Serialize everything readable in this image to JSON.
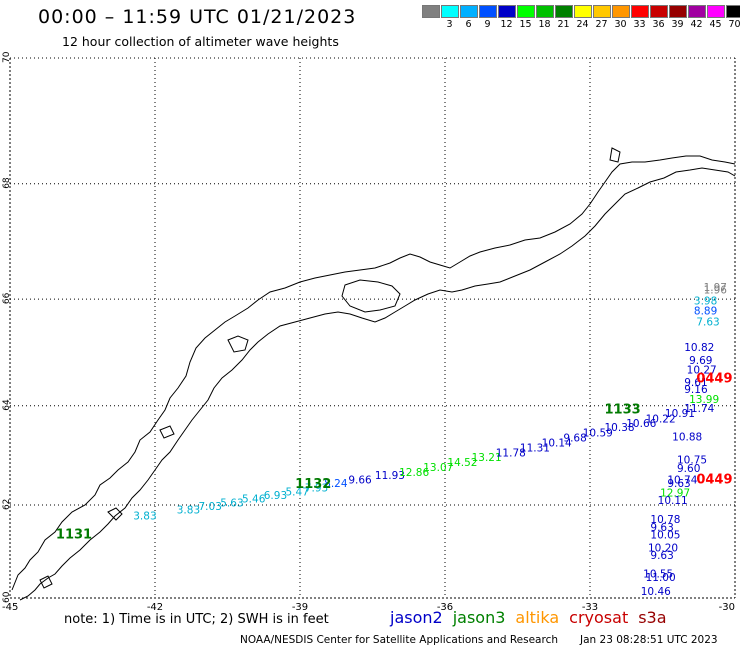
{
  "header": {
    "title": "00:00 – 11:59 UTC 01/21/2023",
    "subtitle": "12 hour collection of altimeter wave heights"
  },
  "legend": {
    "unit": "(ft)",
    "items": [
      {
        "color": "#808080",
        "label": ""
      },
      {
        "color": "#00ffff",
        "label": "3"
      },
      {
        "color": "#00b0ff",
        "label": "6"
      },
      {
        "color": "#0050ff",
        "label": "9"
      },
      {
        "color": "#0000c8",
        "label": "12"
      },
      {
        "color": "#00ff00",
        "label": "15"
      },
      {
        "color": "#00c000",
        "label": "18"
      },
      {
        "color": "#008000",
        "label": "21"
      },
      {
        "color": "#ffff00",
        "label": "24"
      },
      {
        "color": "#ffc800",
        "label": "27"
      },
      {
        "color": "#ff9600",
        "label": "30"
      },
      {
        "color": "#ff0000",
        "label": "33"
      },
      {
        "color": "#c80000",
        "label": "36"
      },
      {
        "color": "#960000",
        "label": "39"
      },
      {
        "color": "#a000a0",
        "label": "42"
      },
      {
        "color": "#ff00ff",
        "label": "45"
      },
      {
        "color": "#000000",
        "label": "70"
      }
    ]
  },
  "map": {
    "lat_range": [
      60,
      70
    ],
    "lon_range": [
      -45,
      -30
    ],
    "lat_labels": [
      "70",
      "68",
      "66",
      "64",
      "62",
      "60"
    ],
    "lon_labels": [
      "-45",
      "-42",
      "-39",
      "-36",
      "-33",
      "-30"
    ]
  },
  "chart_data": {
    "type": "scatter",
    "xlabel": "",
    "ylabel": "",
    "xlim": [
      -45,
      -30
    ],
    "ylim": [
      60,
      70
    ],
    "grid": true,
    "time_labels": [
      {
        "text": "1131",
        "lon": -44.05,
        "lat": 61.3,
        "color": "#007a00"
      },
      {
        "text": "1132",
        "lon": -39.1,
        "lat": 62.35,
        "color": "#007a00"
      },
      {
        "text": "1133",
        "lon": -32.7,
        "lat": 63.85,
        "color": "#007a00"
      },
      {
        "text": "0449",
        "lon": -30.8,
        "lat": 62.45,
        "color": "#ff0000"
      },
      {
        "text": "0449",
        "lon": -30.8,
        "lat": 64.45,
        "color": "#ff0000"
      }
    ],
    "points": [
      {
        "text": "3.83",
        "lon": -42.45,
        "lat": 61.7,
        "color": "#00b0d0"
      },
      {
        "text": "3.83",
        "lon": -41.55,
        "lat": 61.82,
        "color": "#00b0d0"
      },
      {
        "text": "7.03",
        "lon": -41.1,
        "lat": 61.9,
        "color": "#00b0d0"
      },
      {
        "text": "5.63",
        "lon": -40.65,
        "lat": 61.97,
        "color": "#00b0d0"
      },
      {
        "text": "5.46",
        "lon": -40.2,
        "lat": 62.05,
        "color": "#00b0d0"
      },
      {
        "text": "6.93",
        "lon": -39.75,
        "lat": 62.13,
        "color": "#00b0d0"
      },
      {
        "text": "5.47",
        "lon": -39.3,
        "lat": 62.2,
        "color": "#00b0d0"
      },
      {
        "text": "7.93",
        "lon": -38.9,
        "lat": 62.28,
        "color": "#00b0d0"
      },
      {
        "text": "8.24",
        "lon": -38.5,
        "lat": 62.37,
        "color": "#0050ff"
      },
      {
        "text": "9.66",
        "lon": -38.0,
        "lat": 62.45,
        "color": "#0000c8"
      },
      {
        "text": "11.93",
        "lon": -37.45,
        "lat": 62.54,
        "color": "#0000c8"
      },
      {
        "text": "12.86",
        "lon": -36.95,
        "lat": 62.6,
        "color": "#00e000"
      },
      {
        "text": "13.07",
        "lon": -36.45,
        "lat": 62.7,
        "color": "#00e000"
      },
      {
        "text": "14.52",
        "lon": -35.95,
        "lat": 62.8,
        "color": "#00e000"
      },
      {
        "text": "13.21",
        "lon": -35.45,
        "lat": 62.9,
        "color": "#00e000"
      },
      {
        "text": "11.78",
        "lon": -34.95,
        "lat": 63.0,
        "color": "#0000c8"
      },
      {
        "text": "11.31",
        "lon": -34.45,
        "lat": 63.1,
        "color": "#0000c8"
      },
      {
        "text": "10.14",
        "lon": -34.0,
        "lat": 63.2,
        "color": "#0000c8"
      },
      {
        "text": "9.68",
        "lon": -33.55,
        "lat": 63.3,
        "color": "#0000c8"
      },
      {
        "text": "10.59",
        "lon": -33.15,
        "lat": 63.4,
        "color": "#0000c8"
      },
      {
        "text": "10.38",
        "lon": -32.7,
        "lat": 63.5,
        "color": "#0000c8"
      },
      {
        "text": "10.66",
        "lon": -32.25,
        "lat": 63.58,
        "color": "#0000c8"
      },
      {
        "text": "10.22",
        "lon": -31.85,
        "lat": 63.67,
        "color": "#0000c8"
      },
      {
        "text": "10.91",
        "lon": -31.45,
        "lat": 63.78,
        "color": "#0000c8"
      },
      {
        "text": "11.74",
        "lon": -31.05,
        "lat": 63.88,
        "color": "#0000c8"
      },
      {
        "text": "13.99",
        "lon": -30.95,
        "lat": 64.05,
        "color": "#00e000"
      },
      {
        "text": "1.97",
        "lon": -30.65,
        "lat": 66.15,
        "color": "#808080"
      },
      {
        "text": "1.96",
        "lon": -30.65,
        "lat": 66.1,
        "color": "#808080"
      },
      {
        "text": "3.98",
        "lon": -30.85,
        "lat": 65.9,
        "color": "#00b0d0"
      },
      {
        "text": "8.89",
        "lon": -30.85,
        "lat": 65.72,
        "color": "#0050ff"
      },
      {
        "text": "7.63",
        "lon": -30.8,
        "lat": 65.52,
        "color": "#00b0d0"
      },
      {
        "text": "10.82",
        "lon": -31.05,
        "lat": 65.05,
        "color": "#0000c8"
      },
      {
        "text": "9.69",
        "lon": -30.95,
        "lat": 64.8,
        "color": "#0000c8"
      },
      {
        "text": "10.27",
        "lon": -31.0,
        "lat": 64.62,
        "color": "#0000c8"
      },
      {
        "text": "9.61",
        "lon": -31.05,
        "lat": 64.38,
        "color": "#0000c8"
      },
      {
        "text": "9.16",
        "lon": -31.05,
        "lat": 64.25,
        "color": "#0000c8"
      },
      {
        "text": "10.88",
        "lon": -31.3,
        "lat": 63.32,
        "color": "#0000c8"
      },
      {
        "text": "10.75",
        "lon": -31.2,
        "lat": 62.85,
        "color": "#0000c8"
      },
      {
        "text": "9.60",
        "lon": -31.2,
        "lat": 62.68,
        "color": "#0000c8"
      },
      {
        "text": "10.74",
        "lon": -31.4,
        "lat": 62.45,
        "color": "#0000c8"
      },
      {
        "text": "9.63",
        "lon": -31.4,
        "lat": 62.37,
        "color": "#0000c8"
      },
      {
        "text": "12.97",
        "lon": -31.55,
        "lat": 62.18,
        "color": "#00e000"
      },
      {
        "text": "10.11",
        "lon": -31.6,
        "lat": 62.02,
        "color": "#0000c8"
      },
      {
        "text": "10.78",
        "lon": -31.75,
        "lat": 61.62,
        "color": "#0000c8"
      },
      {
        "text": "9.63",
        "lon": -31.75,
        "lat": 61.45,
        "color": "#0000c8"
      },
      {
        "text": "10.05",
        "lon": -31.75,
        "lat": 61.3,
        "color": "#0000c8"
      },
      {
        "text": "10.20",
        "lon": -31.8,
        "lat": 61.02,
        "color": "#0000c8"
      },
      {
        "text": "9.63",
        "lon": -31.75,
        "lat": 60.85,
        "color": "#0000c8"
      },
      {
        "text": "10.55",
        "lon": -31.9,
        "lat": 60.45,
        "color": "#0000c8"
      },
      {
        "text": "11.00",
        "lon": -31.85,
        "lat": 60.37,
        "color": "#0000c8"
      },
      {
        "text": "10.46",
        "lon": -31.95,
        "lat": 60.07,
        "color": "#0000c8"
      }
    ]
  },
  "footer": {
    "note": "note: 1) Time is in UTC; 2) SWH is in feet",
    "satellites": [
      {
        "name": "jason2",
        "color": "#0000c8"
      },
      {
        "name": "jason3",
        "color": "#008000"
      },
      {
        "name": "altika",
        "color": "#ff9600"
      },
      {
        "name": "cryosat",
        "color": "#c80000"
      },
      {
        "name": "s3a",
        "color": "#960000"
      }
    ],
    "credit": "NOAA/NESDIS Center for Satellite Applications and Research",
    "timestamp": "Jan 23 08:28:51 UTC 2023"
  }
}
